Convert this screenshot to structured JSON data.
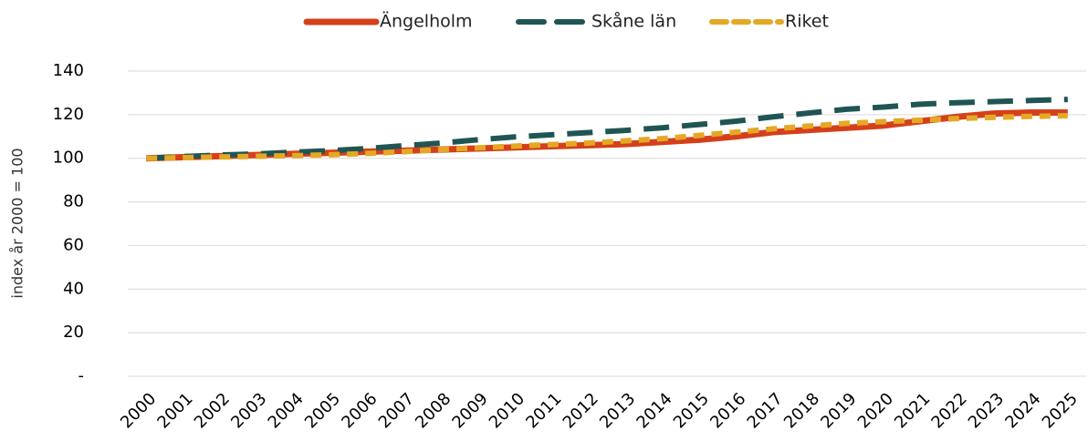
{
  "chart_data": {
    "type": "line",
    "y_label": "index år 2000 = 100",
    "categories": [
      "2000",
      "2001",
      "2002",
      "2003",
      "2004",
      "2005",
      "2006",
      "2007",
      "2008",
      "2009",
      "2010",
      "2011",
      "2012",
      "2013",
      "2014",
      "2015",
      "2016",
      "2017",
      "2018",
      "2019",
      "2020",
      "2021",
      "2022",
      "2023",
      "2024",
      "2025"
    ],
    "series": [
      {
        "name": "Ängelholm",
        "color": "#d4401a",
        "dash": "solid",
        "values": [
          100,
          100.5,
          101,
          101.5,
          102,
          102.5,
          103,
          103.5,
          104,
          104.5,
          105,
          105.5,
          106,
          106.5,
          107.5,
          108.5,
          110,
          112,
          113,
          114,
          115,
          117,
          119,
          120.5,
          121,
          121
        ]
      },
      {
        "name": "Skåne län",
        "color": "#1f5553",
        "dash": "long-dash",
        "values": [
          100,
          100.8,
          101.5,
          102,
          102.8,
          103.5,
          104.5,
          105.8,
          107,
          108.5,
          109.8,
          110.8,
          111.8,
          112.8,
          114,
          115.5,
          117,
          119,
          120.8,
          122.5,
          123.5,
          124.8,
          125.5,
          126,
          126.5,
          127
        ]
      },
      {
        "name": "Riket",
        "color": "#e5a826",
        "dash": "dash",
        "values": [
          100,
          100.3,
          100.6,
          100.9,
          101.2,
          101.6,
          102.2,
          103,
          104,
          104.8,
          105.6,
          106.3,
          107,
          108,
          109,
          110.5,
          112,
          113.5,
          114.8,
          116,
          116.8,
          117.5,
          118.2,
          118.8,
          119.2,
          119.5
        ]
      }
    ],
    "ylim": [
      0,
      140
    ],
    "yticks": [
      {
        "value": 0,
        "label": "-"
      },
      20,
      40,
      60,
      80,
      100,
      120,
      140
    ],
    "grid": true,
    "legend": "top"
  }
}
